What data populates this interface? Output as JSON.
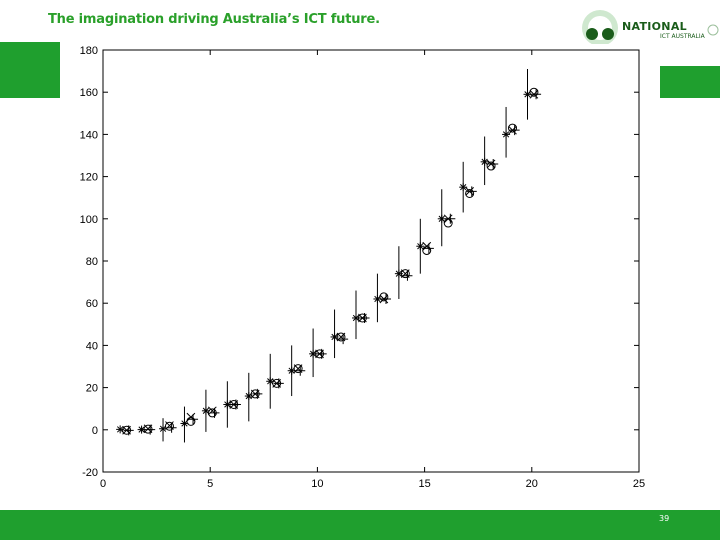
{
  "header": {
    "tagline": "The imagination driving Australia’s ICT future.",
    "logo_text": "NATIONAL",
    "logo_sub": "ICT AUSTRALIA"
  },
  "footer": {
    "page_number": "39",
    "color": "#1f9f2e"
  },
  "chart_data": {
    "type": "scatter",
    "title": "",
    "xlabel": "",
    "ylabel": "",
    "xlim": [
      0,
      25
    ],
    "ylim": [
      -20,
      180
    ],
    "xticks": [
      0,
      5,
      10,
      15,
      20,
      25
    ],
    "yticks": [
      -20,
      0,
      20,
      40,
      60,
      80,
      100,
      120,
      140,
      160,
      180
    ],
    "grid": false,
    "legend": "none",
    "series": [
      {
        "marker": "star",
        "x": [
          0.8,
          1.8,
          2.8,
          3.8,
          4.8,
          5.8,
          6.8,
          7.8,
          8.8,
          9.8,
          10.8,
          11.8,
          12.8,
          13.8,
          14.8,
          15.8,
          16.8,
          17.8,
          18.8,
          19.8
        ],
        "y": [
          0.2,
          0.1,
          0.5,
          3,
          9,
          12,
          16,
          23,
          28,
          36,
          44,
          53,
          62,
          74,
          87,
          100,
          115,
          127,
          140,
          159
        ],
        "err_low": [
          0.2,
          1,
          6,
          9,
          10,
          11,
          12,
          13,
          12,
          11,
          10,
          10,
          11,
          12,
          13,
          13,
          12,
          11,
          11,
          12
        ],
        "err_high": [
          0.2,
          1,
          5,
          8,
          10,
          11,
          11,
          13,
          12,
          12,
          13,
          13,
          12,
          13,
          13,
          14,
          12,
          12,
          13,
          12
        ]
      },
      {
        "marker": "circle",
        "x": [
          1.1,
          2.1,
          3.1,
          4.1,
          5.1,
          6.1,
          7.1,
          8.1,
          9.1,
          10.1,
          11.1,
          12.1,
          13.1,
          14.1,
          15.1,
          16.1,
          17.1,
          18.1,
          19.1,
          20.1
        ],
        "y": [
          -0.2,
          0.3,
          1.7,
          4,
          8,
          12,
          17,
          22,
          29,
          36,
          44,
          53,
          63,
          74,
          85,
          98,
          112,
          125,
          143,
          160
        ]
      },
      {
        "marker": "cross",
        "x": [
          1.1,
          2.1,
          3.1,
          4.1,
          5.1,
          6.1,
          7.1,
          8.1,
          9.1,
          10.1,
          11.1,
          12.1,
          13.1,
          14.1,
          15.1,
          16.1,
          17.1,
          18.1,
          19.1,
          20.1
        ],
        "y": [
          -0.2,
          0.5,
          2,
          6,
          9,
          12,
          17,
          22,
          29,
          36,
          44,
          53,
          62,
          74,
          87,
          100,
          113,
          126,
          142,
          159
        ]
      },
      {
        "marker": "plus",
        "x": [
          1.2,
          2.2,
          3.2,
          4.2,
          5.2,
          6.2,
          7.2,
          8.2,
          9.2,
          10.2,
          11.2,
          12.2,
          13.2,
          14.2,
          15.2,
          16.2,
          17.2,
          18.2,
          19.2,
          20.2
        ],
        "y": [
          -0.3,
          0.1,
          1,
          5,
          8,
          12,
          17,
          22,
          28,
          36,
          43,
          53,
          62,
          73,
          86,
          100,
          113,
          126,
          142,
          159
        ]
      }
    ]
  }
}
